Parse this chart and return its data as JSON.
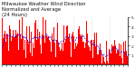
{
  "title_line1": "Milwaukee Weather Wind Direction",
  "title_line2": "Normalized and Average",
  "title_line3": "(24 Hours)",
  "title_fontsize": 3.8,
  "background_color": "#ffffff",
  "plot_bg_color": "#ffffff",
  "grid_color": "#bbbbbb",
  "bar_color": "#ff0000",
  "line_color": "#0000ff",
  "ylim": [
    0,
    5
  ],
  "yticks": [
    1,
    2,
    3,
    4,
    5
  ],
  "ytick_labels": [
    "1",
    "2",
    "3",
    "4",
    "5"
  ],
  "n_points": 144,
  "seed": 7,
  "n_gridlines": 8
}
